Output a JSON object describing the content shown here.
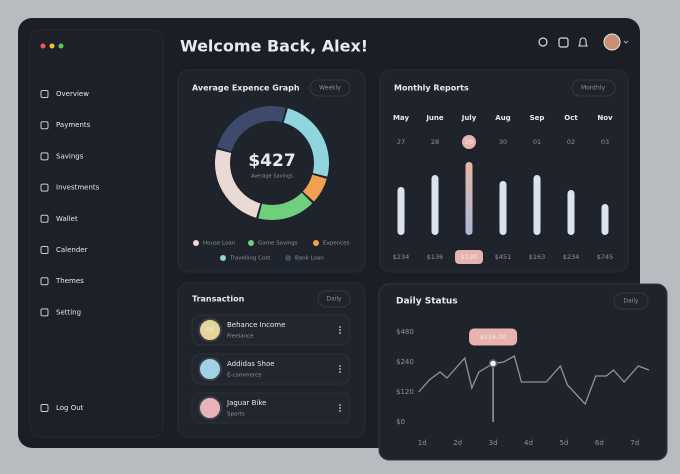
{
  "header": {
    "title": "Welcome Back, Alex!"
  },
  "sidebar": {
    "items": [
      "Overview",
      "Payments",
      "Savings",
      "Investments",
      "Wallet",
      "Calender",
      "Themes",
      "Setting"
    ],
    "logout": "Log Out"
  },
  "expense": {
    "title": "Average Expence Graph",
    "period": "Weekly",
    "total": "$427",
    "total_label": "Average Savings",
    "segments": [
      {
        "name": "House Loan",
        "color": "#ead9d4",
        "value": 25
      },
      {
        "name": "Game Savings",
        "color": "#6fcf7c",
        "value": 17
      },
      {
        "name": "Expences",
        "color": "#f2a04f",
        "value": 8
      },
      {
        "name": "Travelling Cost",
        "color": "#8fd4df",
        "value": 25
      },
      {
        "name": "Bank Loan",
        "color": "#3c4a6c",
        "value": 25
      }
    ]
  },
  "monthly": {
    "title": "Monthly Reports",
    "period": "Monthly",
    "months": [
      {
        "month": "May",
        "day": "27",
        "amount": "$234",
        "level": 48
      },
      {
        "month": "June",
        "day": "28",
        "amount": "$136",
        "level": 60
      },
      {
        "month": "July",
        "day": "29",
        "amount": "$130",
        "level": 73,
        "active": true
      },
      {
        "month": "Aug",
        "day": "30",
        "amount": "$451",
        "level": 54
      },
      {
        "month": "Sep",
        "day": "01",
        "amount": "$163",
        "level": 60
      },
      {
        "month": "Oct",
        "day": "02",
        "amount": "$234",
        "level": 45
      },
      {
        "month": "Nov",
        "day": "03",
        "amount": "$745",
        "level": 31
      }
    ]
  },
  "transaction": {
    "title": "Transaction",
    "period": "Daily",
    "items": [
      {
        "name": "Behance Income",
        "category": "Freelance",
        "icon_text": "B6",
        "color": "#e6d499"
      },
      {
        "name": "Addidas Shoe",
        "category": "E-commerce",
        "color": "#9fd2e4"
      },
      {
        "name": "Jaguar Bike",
        "category": "Sports",
        "color": "#e8b3b8"
      }
    ]
  },
  "daily": {
    "title": "Daily Status",
    "period": "Daily",
    "ylim": [
      0,
      480
    ],
    "yticks": [
      {
        "value": 0,
        "label": "$0"
      },
      {
        "value": 120,
        "label": "$120"
      },
      {
        "value": 240,
        "label": "$240"
      },
      {
        "value": 480,
        "label": "$480"
      }
    ],
    "xlim": [
      0.4,
      7.6
    ],
    "xticks": [
      {
        "value": 1,
        "label": "1d"
      },
      {
        "value": 2,
        "label": "2d"
      },
      {
        "value": 3,
        "label": "3d"
      },
      {
        "value": 4,
        "label": "4d"
      },
      {
        "value": 5,
        "label": "5d"
      },
      {
        "value": 6,
        "label": "6d"
      },
      {
        "value": 7,
        "label": "7d"
      }
    ],
    "x": [
      0.9,
      1.2,
      1.5,
      1.7,
      2.0,
      2.2,
      2.4,
      2.6,
      3.0,
      3.3,
      3.6,
      3.8,
      4.5,
      4.9,
      5.1,
      5.6,
      5.9,
      6.2,
      6.4,
      6.7,
      7.1,
      7.4
    ],
    "values": [
      120,
      168,
      200,
      176,
      224,
      272,
      136,
      200,
      234,
      240,
      288,
      160,
      160,
      224,
      148,
      72,
      184,
      184,
      208,
      160,
      224,
      208
    ],
    "value_labels": [
      null,
      null,
      null,
      null,
      null,
      null,
      null,
      null,
      "$234.00",
      null,
      null,
      null,
      null,
      null,
      null,
      null,
      null,
      null,
      null,
      null,
      null,
      null
    ]
  }
}
